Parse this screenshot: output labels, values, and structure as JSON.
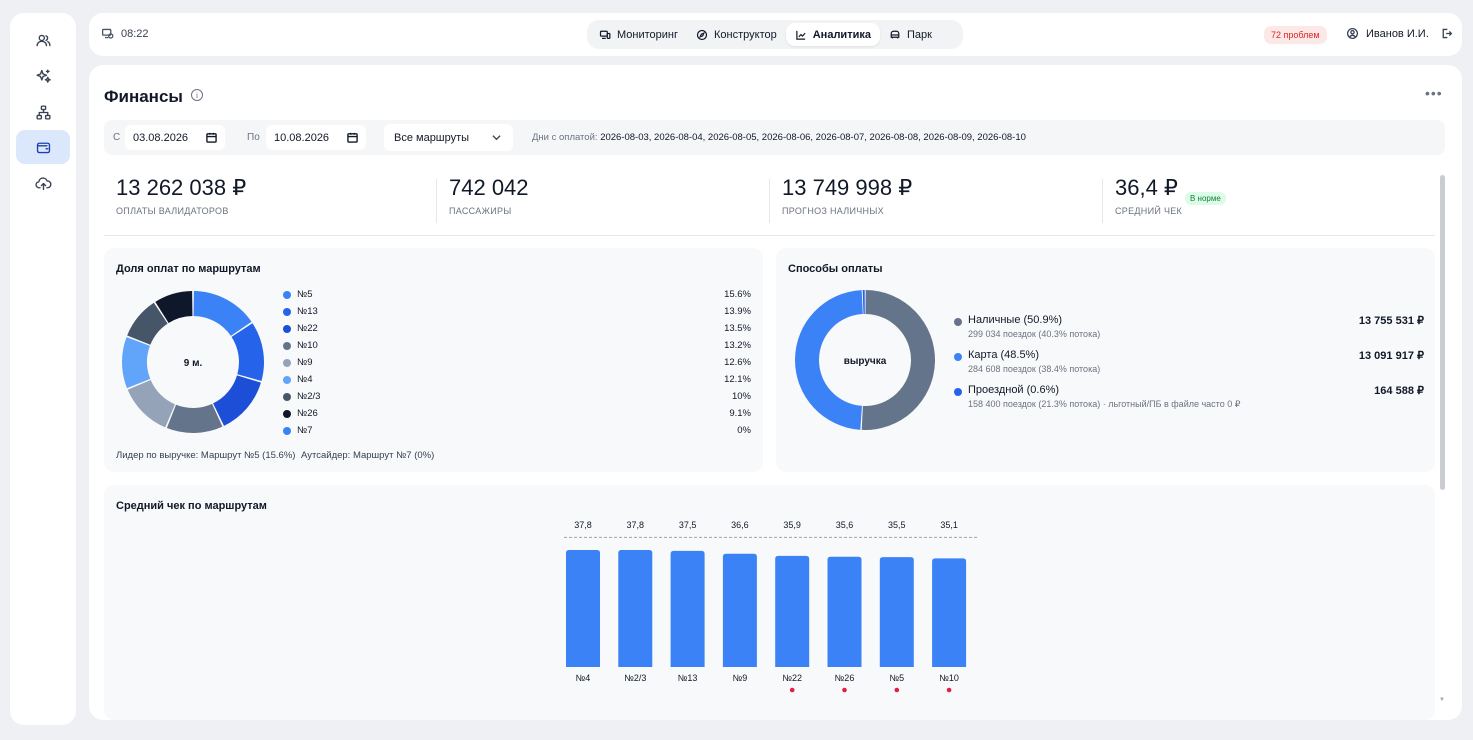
{
  "sidebar": {
    "items": [
      {
        "name": "users",
        "active": false
      },
      {
        "name": "sparkles",
        "active": false
      },
      {
        "name": "org-structure",
        "active": false
      },
      {
        "name": "wallet",
        "active": true
      },
      {
        "name": "cloud-upload",
        "active": false
      }
    ]
  },
  "topbar": {
    "time": "08:22",
    "tabs": [
      {
        "label": "Мониторинг",
        "icon": "monitor-icon",
        "active": false
      },
      {
        "label": "Конструктор",
        "icon": "compass-icon",
        "active": false
      },
      {
        "label": "Аналитика",
        "icon": "chart-icon",
        "active": true
      },
      {
        "label": "Парк",
        "icon": "bus-icon",
        "active": false
      }
    ],
    "issues": "72 проблем",
    "user": "Иванов И.И."
  },
  "page": {
    "title": "Финансы",
    "info_glyph": "i",
    "more_glyph": "•••"
  },
  "filters": {
    "from_label": "С",
    "from_value": "03.08.2026",
    "to_label": "По",
    "to_value": "10.08.2026",
    "route_select": "Все маршруты",
    "days_label": "Дни с оплатой:",
    "days_value": "2026-08-03, 2026-08-04, 2026-08-05, 2026-08-06, 2026-08-07, 2026-08-08, 2026-08-09, 2026-08-10"
  },
  "kpis": [
    {
      "value": "13 262 038 ₽",
      "label": "ОПЛАТЫ ВАЛИДАТОРОВ"
    },
    {
      "value": "742 042",
      "label": "ПАССАЖИРЫ"
    },
    {
      "value": "13 749 998 ₽",
      "label": "ПРОГНОЗ НАЛИЧНЫХ"
    },
    {
      "value": "36,4 ₽",
      "label": "СРЕДНИЙ ЧЕК",
      "badge": "В норме"
    }
  ],
  "route_share": {
    "title": "Доля оплат по маршрутам",
    "center": "9 м.",
    "items": [
      {
        "name": "№5",
        "pct": "15.6%",
        "value": 15.6,
        "color": "#3b82f6"
      },
      {
        "name": "№13",
        "pct": "13.9%",
        "value": 13.9,
        "color": "#2563eb"
      },
      {
        "name": "№22",
        "pct": "13.5%",
        "value": 13.5,
        "color": "#1d4ed8"
      },
      {
        "name": "№10",
        "pct": "13.2%",
        "value": 13.2,
        "color": "#64748b"
      },
      {
        "name": "№9",
        "pct": "12.6%",
        "value": 12.6,
        "color": "#94a3b8"
      },
      {
        "name": "№4",
        "pct": "12.1%",
        "value": 12.1,
        "color": "#60a5fa"
      },
      {
        "name": "№2/3",
        "pct": "10%",
        "value": 10,
        "color": "#475569"
      },
      {
        "name": "№26",
        "pct": "9.1%",
        "value": 9.1,
        "color": "#0f172a"
      },
      {
        "name": "№7",
        "pct": "0%",
        "value": 0,
        "color": "#3b82f6"
      }
    ],
    "leader": "Лидер по выручке: Маршрут №5 (15.6%)",
    "outsider": "Аутсайдер: Маршрут №7 (0%)"
  },
  "payment_methods": {
    "title": "Способы оплаты",
    "center": "выручка",
    "items": [
      {
        "name": "Наличные (50.9%)",
        "sub": "299 034 поездок (40.3% потока)",
        "amount": "13 755 531 ₽",
        "value": 50.9,
        "color": "#64748b"
      },
      {
        "name": "Карта (48.5%)",
        "sub": "284 608 поездок (38.4% потока)",
        "amount": "13 091 917 ₽",
        "value": 48.5,
        "color": "#3b82f6"
      },
      {
        "name": "Проездной (0.6%)",
        "sub": "158 400 поездок (21.3% потока) · льготный/ПБ в файле часто 0 ₽",
        "amount": "164 588 ₽",
        "value": 0.6,
        "color": "#2563eb"
      }
    ]
  },
  "avg_check": {
    "title": "Средний чек по маршрутам",
    "bar_color": "#3b82f6",
    "flag_color": "#e11d48"
  },
  "chart_data": {
    "type": "bar",
    "title": "Средний чек по маршрутам",
    "categories": [
      "№4",
      "№2/3",
      "№13",
      "№9",
      "№22",
      "№26",
      "№5",
      "№10"
    ],
    "values": [
      37.8,
      37.8,
      37.5,
      36.6,
      35.9,
      35.6,
      35.5,
      35.1
    ],
    "value_labels": [
      "37,8",
      "37,8",
      "37,5",
      "36,6",
      "35,9",
      "35,6",
      "35,5",
      "35,1"
    ],
    "flagged": [
      false,
      false,
      false,
      false,
      true,
      true,
      true,
      true
    ],
    "reference_line": 36.4,
    "ylim": [
      0,
      37.8
    ],
    "xlabel": "",
    "ylabel": "",
    "grid": false,
    "legend": "none"
  }
}
